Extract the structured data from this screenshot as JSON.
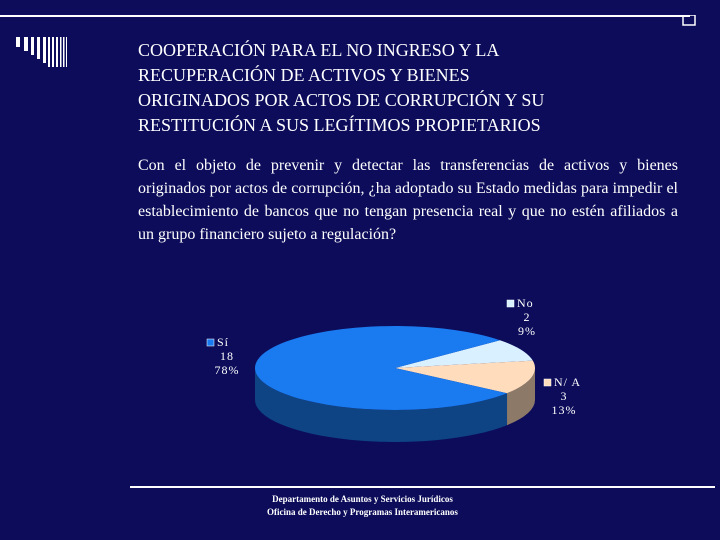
{
  "slide": {
    "title": "COOPERACIÓN PARA EL NO INGRESO Y LA\nRECUPERACIÓN DE ACTIVOS Y BIENES\nORIGINADOS POR ACTOS DE CORRUPCIÓN Y SU\nRESTITUCIÓN A SUS LEGÍTIMOS PROPIETARIOS",
    "question": "Con el objeto de prevenir y detectar las transferencias de activos y bienes originados por actos de corrupción, ¿ha adoptado su Estado medidas para impedir el establecimiento de bancos que no tengan presencia real y que no estén afiliados a un grupo financiero sujeto a regulación?"
  },
  "chart_data": {
    "type": "pie",
    "style": "3d",
    "slices": [
      {
        "label": "Sí",
        "value": 18,
        "percent": "78%",
        "color": "#1a7af0"
      },
      {
        "label": "No",
        "value": 2,
        "percent": "9%",
        "color": "#d8f0ff"
      },
      {
        "label": "N/ A",
        "value": 3,
        "percent": "13%",
        "color": "#ffdcbc"
      }
    ]
  },
  "footer": {
    "line1": "Departamento de Asuntos y Servicios Jurídicos",
    "line2": "Oficina de Derecho y Programas Interamericanos"
  },
  "colors": {
    "background": "#0c0c5a",
    "text": "#ffffff"
  }
}
